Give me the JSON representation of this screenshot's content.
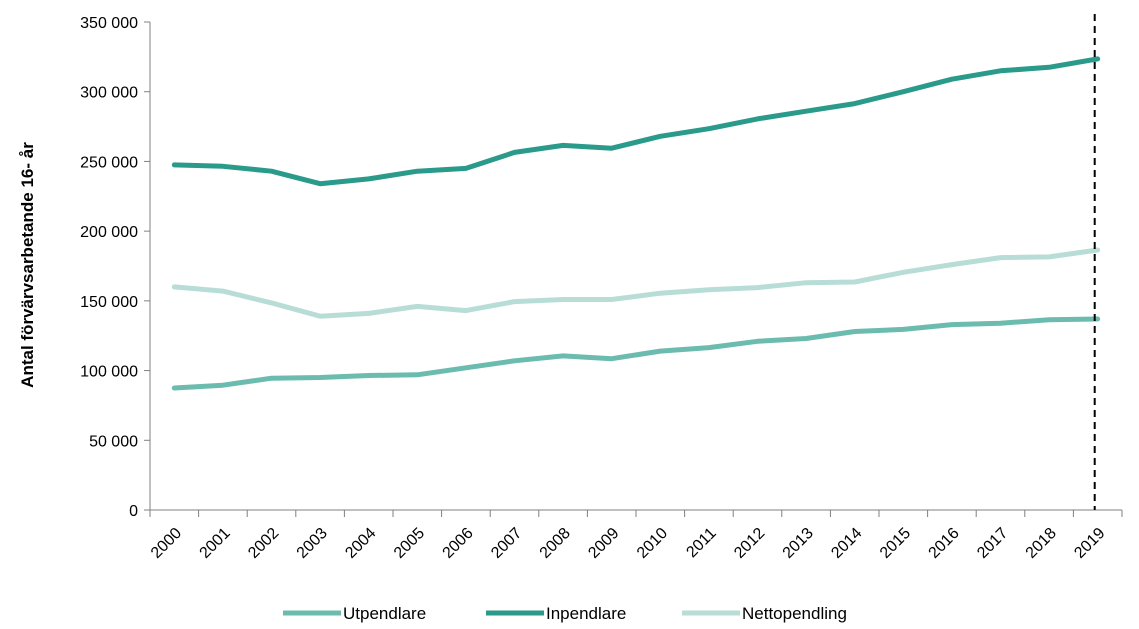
{
  "chart_data": {
    "type": "line",
    "title": "",
    "xlabel": "",
    "ylabel": "Antal förvärvsarbetande 16- år",
    "ylim": [
      0,
      350000
    ],
    "y_ticks": [
      0,
      50000,
      100000,
      150000,
      200000,
      250000,
      300000,
      350000
    ],
    "y_tick_labels": [
      "0",
      "50 000",
      "100 000",
      "150 000",
      "200 000",
      "250 000",
      "300 000",
      "350 000"
    ],
    "categories": [
      "2000",
      "2001",
      "2002",
      "2003",
      "2004",
      "2005",
      "2006",
      "2007",
      "2008",
      "2009",
      "2010",
      "2011",
      "2012",
      "2013",
      "2014",
      "2015",
      "2016",
      "2017",
      "2018",
      "2019"
    ],
    "grid": false,
    "legend_position": "bottom",
    "reference_line": {
      "x": "2019",
      "style": "dashed",
      "color": "#000000"
    },
    "series": [
      {
        "name": "Utpendlare",
        "color": "#6bbcaf",
        "values": [
          87500,
          89500,
          94500,
          95000,
          96500,
          97000,
          102000,
          107000,
          110500,
          108500,
          114000,
          116500,
          121000,
          123000,
          128000,
          129500,
          133000,
          134000,
          136500,
          137000
        ]
      },
      {
        "name": "Inpendlare",
        "color": "#2a9a8a",
        "values": [
          247500,
          246500,
          243000,
          234000,
          237500,
          243000,
          245000,
          256500,
          261500,
          259500,
          268000,
          273500,
          280500,
          286000,
          291500,
          300000,
          309000,
          315000,
          317500,
          323500
        ]
      },
      {
        "name": "Nettopendling",
        "color": "#b8ddd6",
        "values": [
          160000,
          157000,
          148500,
          139000,
          141000,
          146000,
          143000,
          149500,
          151000,
          151000,
          155500,
          158000,
          159500,
          163000,
          163500,
          170500,
          176000,
          181000,
          181500,
          186500
        ]
      }
    ]
  }
}
